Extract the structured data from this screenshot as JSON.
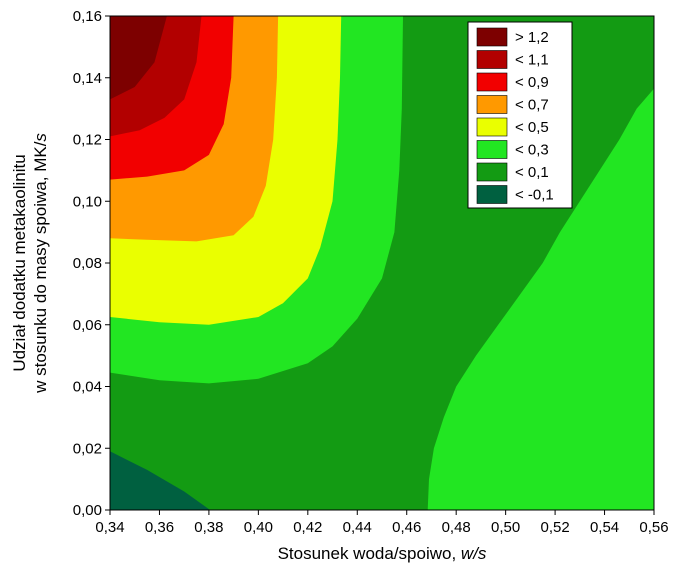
{
  "chart_data": {
    "type": "heatmap",
    "xlabel": "Stosunek woda/spoiwo, ",
    "xlabel_italic": "w/s",
    "ylabel_line1": "Udział dodatku metakaolinitu",
    "ylabel_line2": "w stosunku do masy spoiwa, MK/",
    "ylabel_line2_italic": "s",
    "xlim": [
      0.34,
      0.56
    ],
    "ylim": [
      0.0,
      0.16
    ],
    "x_ticks": [
      "0,34",
      "0,36",
      "0,38",
      "0,40",
      "0,42",
      "0,44",
      "0,46",
      "0,48",
      "0,50",
      "0,52",
      "0,54",
      "0,56"
    ],
    "y_ticks": [
      "0,00",
      "0,02",
      "0,04",
      "0,06",
      "0,08",
      "0,10",
      "0,12",
      "0,14",
      "0,16"
    ],
    "legend_position": "top-right",
    "levels": [
      {
        "label": "> 1,2",
        "color": "#7d0000"
      },
      {
        "label": "< 1,1",
        "color": "#b20000"
      },
      {
        "label": "< 0,9",
        "color": "#f20000"
      },
      {
        "label": "< 0,7",
        "color": "#ff9900"
      },
      {
        "label": "< 0,5",
        "color": "#eaff00"
      },
      {
        "label": "< 0,3",
        "color": "#22e622"
      },
      {
        "label": "< 0,1",
        "color": "#139b13"
      },
      {
        "label": "< -0,1",
        "color": "#006040"
      }
    ],
    "regions": [
      {
        "level": 6,
        "points": [
          [
            0.34,
            0.0
          ],
          [
            0.56,
            0.0
          ],
          [
            0.56,
            0.16
          ],
          [
            0.34,
            0.16
          ]
        ]
      },
      {
        "level": 7,
        "points": [
          [
            0.34,
            0.0
          ],
          [
            0.3805,
            0.0
          ],
          [
            0.37,
            0.006
          ],
          [
            0.355,
            0.013
          ],
          [
            0.34,
            0.019
          ]
        ]
      },
      {
        "level": 5,
        "points": [
          [
            0.56,
            0.0
          ],
          [
            0.531,
            0.0
          ],
          [
            0.538,
            0.011
          ],
          [
            0.545,
            0.024
          ],
          [
            0.552,
            0.036
          ],
          [
            0.56,
            0.047
          ]
        ]
      },
      {
        "level": 5,
        "points": [
          [
            0.56,
            0.1365
          ],
          [
            0.553,
            0.13
          ],
          [
            0.546,
            0.12
          ],
          [
            0.538,
            0.11
          ],
          [
            0.53,
            0.1
          ],
          [
            0.522,
            0.09
          ],
          [
            0.515,
            0.08
          ],
          [
            0.506,
            0.07
          ],
          [
            0.497,
            0.06
          ],
          [
            0.488,
            0.05
          ],
          [
            0.48,
            0.04
          ],
          [
            0.475,
            0.03
          ],
          [
            0.471,
            0.02
          ],
          [
            0.469,
            0.01
          ],
          [
            0.4685,
            0.0
          ],
          [
            0.56,
            0.0
          ]
        ]
      },
      {
        "level": 5,
        "points": [
          [
            0.34,
            0.16
          ],
          [
            0.34,
            0.0445
          ],
          [
            0.36,
            0.042
          ],
          [
            0.38,
            0.041
          ],
          [
            0.4,
            0.0425
          ],
          [
            0.42,
            0.0475
          ],
          [
            0.43,
            0.053
          ],
          [
            0.44,
            0.062
          ],
          [
            0.45,
            0.075
          ],
          [
            0.455,
            0.09
          ],
          [
            0.457,
            0.11
          ],
          [
            0.458,
            0.13
          ],
          [
            0.4585,
            0.16
          ]
        ]
      },
      {
        "level": 4,
        "points": [
          [
            0.34,
            0.16
          ],
          [
            0.34,
            0.0625
          ],
          [
            0.36,
            0.0608
          ],
          [
            0.38,
            0.06
          ],
          [
            0.4,
            0.0625
          ],
          [
            0.41,
            0.067
          ],
          [
            0.42,
            0.075
          ],
          [
            0.425,
            0.085
          ],
          [
            0.43,
            0.1
          ],
          [
            0.432,
            0.12
          ],
          [
            0.433,
            0.14
          ],
          [
            0.4335,
            0.16
          ]
        ]
      },
      {
        "level": 3,
        "points": [
          [
            0.34,
            0.16
          ],
          [
            0.34,
            0.088
          ],
          [
            0.355,
            0.0875
          ],
          [
            0.375,
            0.087
          ],
          [
            0.39,
            0.089
          ],
          [
            0.398,
            0.095
          ],
          [
            0.403,
            0.105
          ],
          [
            0.406,
            0.12
          ],
          [
            0.4075,
            0.14
          ],
          [
            0.408,
            0.16
          ]
        ]
      },
      {
        "level": 2,
        "points": [
          [
            0.34,
            0.16
          ],
          [
            0.34,
            0.107
          ],
          [
            0.355,
            0.108
          ],
          [
            0.37,
            0.11
          ],
          [
            0.38,
            0.115
          ],
          [
            0.386,
            0.125
          ],
          [
            0.389,
            0.14
          ],
          [
            0.39,
            0.16
          ]
        ]
      },
      {
        "level": 1,
        "points": [
          [
            0.34,
            0.16
          ],
          [
            0.34,
            0.121
          ],
          [
            0.352,
            0.123
          ],
          [
            0.362,
            0.127
          ],
          [
            0.37,
            0.133
          ],
          [
            0.375,
            0.145
          ],
          [
            0.377,
            0.16
          ]
        ]
      },
      {
        "level": 0,
        "points": [
          [
            0.34,
            0.16
          ],
          [
            0.34,
            0.133
          ],
          [
            0.35,
            0.137
          ],
          [
            0.358,
            0.145
          ],
          [
            0.363,
            0.16
          ]
        ]
      }
    ]
  }
}
